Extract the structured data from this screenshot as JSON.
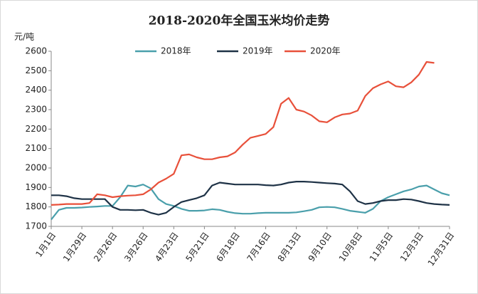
{
  "chart_data": {
    "type": "line",
    "title": "2018-2020年全国玉米均价走势",
    "y_label": "元/吨",
    "categories": [
      "1月1日",
      null,
      null,
      null,
      "1月29日",
      null,
      null,
      null,
      "2月26日",
      null,
      null,
      null,
      "3月26日",
      null,
      null,
      null,
      "4月23日",
      null,
      null,
      null,
      "5月21日",
      null,
      null,
      null,
      "6月18日",
      null,
      null,
      null,
      "7月16日",
      null,
      null,
      null,
      "8月13日",
      null,
      null,
      null,
      "9月10日",
      null,
      null,
      null,
      "10月8日",
      null,
      null,
      null,
      "11月5日",
      null,
      null,
      null,
      "12月3日",
      null,
      null,
      null,
      "12月31日"
    ],
    "series": [
      {
        "name": "2018年",
        "color": "#4a9fab",
        "values": [
          1735,
          1785,
          1795,
          1795,
          1797,
          1800,
          1802,
          1805,
          1805,
          1850,
          1910,
          1905,
          1915,
          1895,
          1840,
          1815,
          1805,
          1790,
          1780,
          1780,
          1782,
          1788,
          1785,
          1775,
          1768,
          1765,
          1765,
          1768,
          1770,
          1770,
          1770,
          1770,
          1772,
          1778,
          1785,
          1798,
          1800,
          1798,
          1790,
          1780,
          1775,
          1770,
          1790,
          1830,
          1850,
          1865,
          1880,
          1890,
          1905,
          1910,
          1890,
          1870,
          1860
        ]
      },
      {
        "name": "2019年",
        "color": "#1e3246",
        "values": [
          1860,
          1860,
          1855,
          1845,
          1840,
          1840,
          1840,
          1840,
          1800,
          1785,
          1785,
          1783,
          1785,
          1770,
          1760,
          1770,
          1800,
          1825,
          1835,
          1845,
          1860,
          1910,
          1925,
          1920,
          1915,
          1915,
          1915,
          1915,
          1912,
          1910,
          1915,
          1925,
          1930,
          1930,
          1928,
          1925,
          1922,
          1920,
          1915,
          1880,
          1830,
          1815,
          1820,
          1830,
          1835,
          1835,
          1840,
          1838,
          1830,
          1820,
          1815,
          1812,
          1810
        ]
      },
      {
        "name": "2020年",
        "color": "#e8503a",
        "values": [
          1810,
          1812,
          1815,
          1815,
          1815,
          1820,
          1865,
          1860,
          1850,
          1855,
          1858,
          1860,
          1865,
          1890,
          1925,
          1945,
          1970,
          2065,
          2070,
          2055,
          2045,
          2045,
          2055,
          2060,
          2080,
          2120,
          2155,
          2165,
          2175,
          2210,
          2330,
          2360,
          2300,
          2290,
          2270,
          2240,
          2235,
          2260,
          2275,
          2280,
          2295,
          2370,
          2410,
          2430,
          2445,
          2420,
          2415,
          2440,
          2480,
          2545,
          2540,
          null,
          null
        ]
      }
    ],
    "ylim": [
      1700,
      2600
    ],
    "yticks": [
      1700,
      1800,
      1900,
      2000,
      2100,
      2200,
      2300,
      2400,
      2500,
      2600
    ],
    "grid": false,
    "legend": "top"
  }
}
